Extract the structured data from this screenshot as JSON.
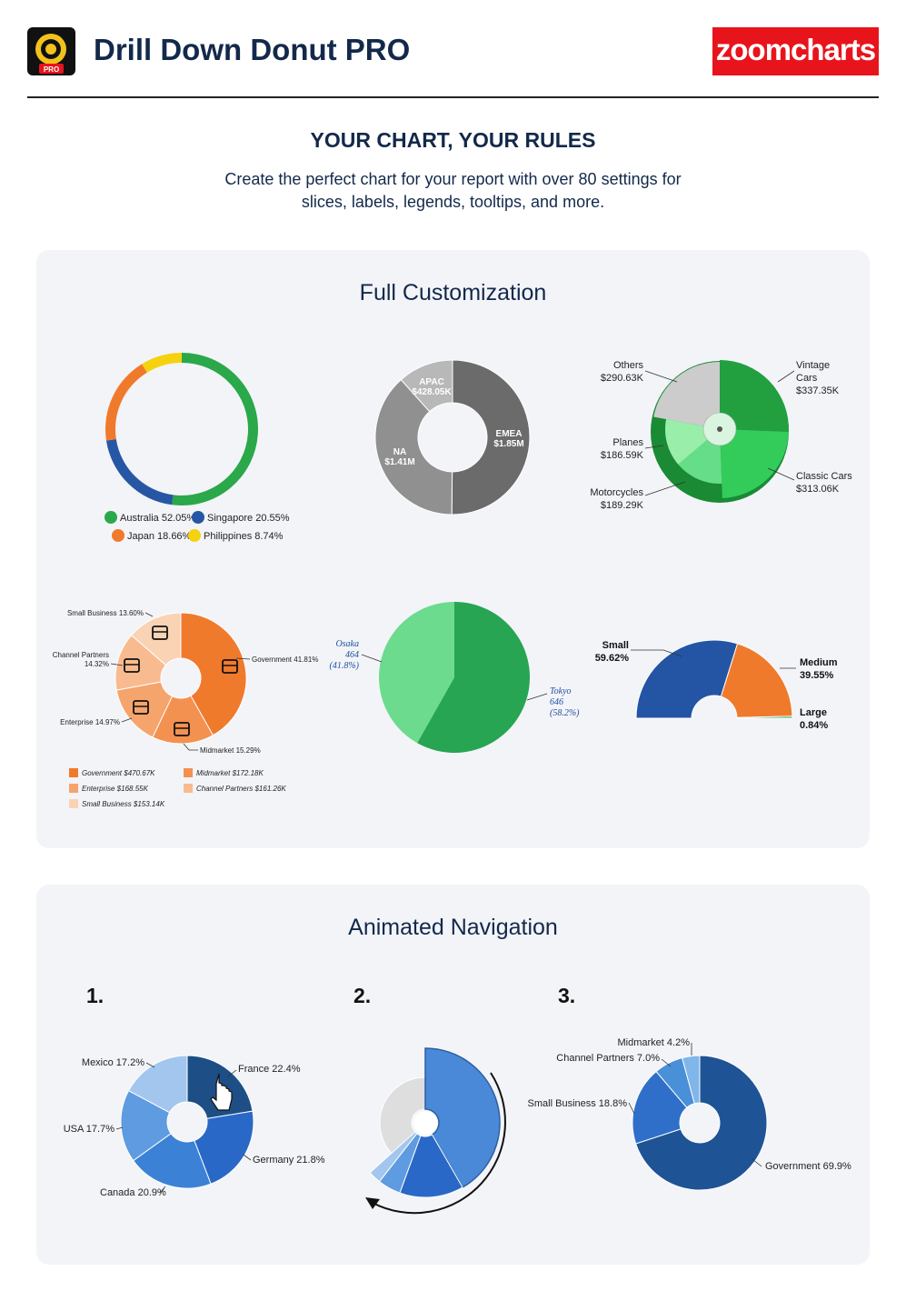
{
  "header": {
    "title": "Drill Down Donut PRO",
    "app_badge": "PRO",
    "brand": "zoomcharts",
    "brand_color": "#e8141c"
  },
  "hero": {
    "title": "YOUR CHART, YOUR RULES",
    "subtitle_line1": "Create the perfect chart for your report with over 80 settings for",
    "subtitle_line2": "slices, labels, legends, tooltips, and more."
  },
  "section1": {
    "title": "Full Customization"
  },
  "section2": {
    "title": "Animated Navigation",
    "steps": [
      "1.",
      "2.",
      "3."
    ]
  },
  "chart_data": [
    {
      "id": "c1",
      "type": "pie",
      "variant": "thin-ring",
      "series": [
        {
          "name": "Australia",
          "value": 52.05,
          "label": "Australia 52.05%",
          "color": "#2aa84a"
        },
        {
          "name": "Singapore",
          "value": 20.55,
          "label": "Singapore 20.55%",
          "color": "#2757a4"
        },
        {
          "name": "Japan",
          "value": 18.66,
          "label": "Japan 18.66%",
          "color": "#f07a2c"
        },
        {
          "name": "Philippines",
          "value": 8.74,
          "label": "Philippines 8.74%",
          "color": "#f5d20f"
        }
      ],
      "legend": "bottom"
    },
    {
      "id": "c2",
      "type": "pie",
      "variant": "donut",
      "series": [
        {
          "name": "EMEA",
          "value": 1.85,
          "label1": "EMEA",
          "label2": "$1.85M",
          "color": "#6b6b6b"
        },
        {
          "name": "NA",
          "value": 1.41,
          "label1": "NA",
          "label2": "$1.41M",
          "color": "#909090"
        },
        {
          "name": "APAC",
          "value": 0.42805,
          "label1": "APAC",
          "label2": "$428.05K",
          "color": "#b8b8b8"
        }
      ]
    },
    {
      "id": "c3",
      "type": "pie",
      "variant": "3d-drilldown",
      "series": [
        {
          "name": "Vintage Cars",
          "value": 337.35,
          "label1": "Vintage",
          "label2": "Cars",
          "label3": "$337.35K",
          "color": "#22a040"
        },
        {
          "name": "Classic Cars",
          "value": 313.06,
          "label1": "Classic Cars",
          "label2": "$313.06K",
          "color": "#33cc5a"
        },
        {
          "name": "Motorcycles",
          "value": 189.29,
          "label1": "Motorcycles",
          "label2": "$189.29K",
          "color": "#66dd88"
        },
        {
          "name": "Planes",
          "value": 186.59,
          "label1": "Planes",
          "label2": "$186.59K",
          "color": "#99eeaa"
        },
        {
          "name": "Others",
          "value": 290.63,
          "label1": "Others",
          "label2": "$290.63K",
          "color": "#cccccc"
        }
      ]
    },
    {
      "id": "c4",
      "type": "pie",
      "variant": "donut-icons",
      "series": [
        {
          "name": "Government",
          "value": 41.81,
          "slice_label": "Government 41.81%",
          "legend": "Government $470.67K",
          "color": "#f07a2c"
        },
        {
          "name": "Midmarket",
          "value": 15.29,
          "slice_label": "Midmarket 15.29%",
          "legend": "Midmarket $172.18K",
          "color": "#f39150"
        },
        {
          "name": "Enterprise",
          "value": 14.97,
          "slice_label": "Enterprise 14.97%",
          "legend": "Enterprise $168.55K",
          "color": "#f5a46c"
        },
        {
          "name": "Channel Partners",
          "value": 14.32,
          "slice_label1": "Channel Partners",
          "slice_label2": "14.32%",
          "legend": "Channel Partners $161.26K",
          "color": "#f8bb8f"
        },
        {
          "name": "Small Business",
          "value": 13.6,
          "slice_label": "Small Business 13.60%",
          "legend": "Small Business $153.14K",
          "color": "#fad3b5"
        }
      ]
    },
    {
      "id": "c5",
      "type": "pie",
      "series": [
        {
          "name": "Tokyo",
          "value": 646,
          "label1": "Tokyo",
          "label2": "646",
          "label3": "(58.2%)",
          "color": "#27a552"
        },
        {
          "name": "Osaka",
          "value": 464,
          "label1": "Osaka",
          "label2": "464",
          "label3": "(41.8%)",
          "color": "#6cdb8e"
        }
      ]
    },
    {
      "id": "c6",
      "type": "pie",
      "variant": "half-donut",
      "series": [
        {
          "name": "Small",
          "value": 59.62,
          "label1": "Small",
          "label2": "59.62%",
          "color": "#2455a4"
        },
        {
          "name": "Medium",
          "value": 39.55,
          "label1": "Medium",
          "label2": "39.55%",
          "color": "#f07a2c"
        },
        {
          "name": "Large",
          "value": 0.84,
          "label1": "Large",
          "label2": "0.84%",
          "color": "#3aa55a"
        }
      ]
    },
    {
      "id": "n1",
      "type": "pie",
      "variant": "donut",
      "series": [
        {
          "name": "France",
          "value": 22.4,
          "label": "France 22.4%",
          "color": "#1d4f86"
        },
        {
          "name": "Germany",
          "value": 21.8,
          "label": "Germany 21.8%",
          "color": "#2a68c8"
        },
        {
          "name": "Canada",
          "value": 20.9,
          "label": "Canada 20.9%",
          "color": "#3b82d6"
        },
        {
          "name": "USA",
          "value": 17.7,
          "label": "USA 17.7%",
          "color": "#5e9be0"
        },
        {
          "name": "Mexico",
          "value": 17.2,
          "label": "Mexico 17.2%",
          "color": "#a3c6ee"
        }
      ]
    },
    {
      "id": "n3",
      "type": "pie",
      "variant": "donut",
      "series": [
        {
          "name": "Government",
          "value": 69.9,
          "label": "Government 69.9%",
          "color": "#1e5496"
        },
        {
          "name": "Small Business",
          "value": 18.8,
          "label": "Small Business 18.8%",
          "color": "#2f6fca"
        },
        {
          "name": "Channel Partners",
          "value": 7.0,
          "label": "Channel Partners 7.0%",
          "color": "#4a90d8"
        },
        {
          "name": "Midmarket",
          "value": 4.2,
          "label": "Midmarket 4.2%",
          "color": "#80b6ea"
        }
      ]
    }
  ]
}
